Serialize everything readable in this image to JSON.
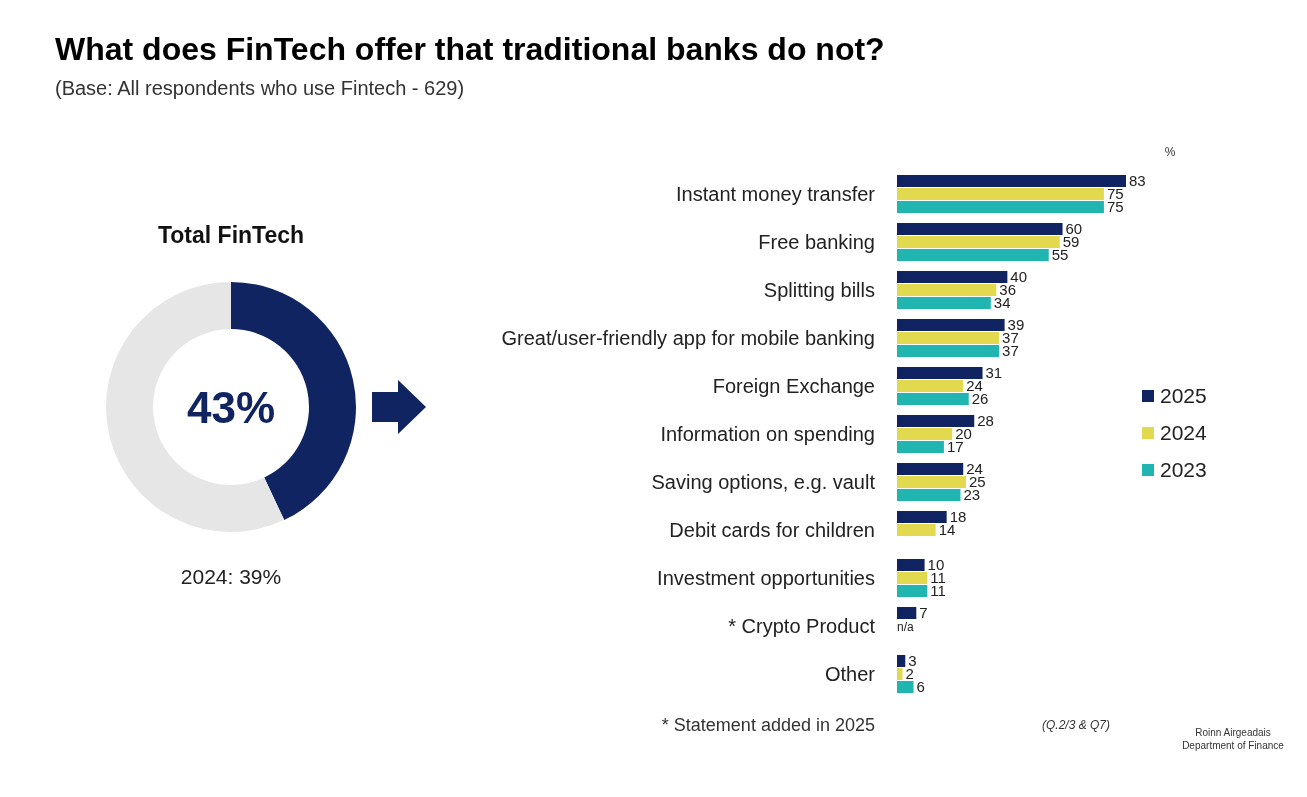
{
  "chart_data": [
    {
      "type": "donut",
      "title": "Total FinTech",
      "categories": [
        null,
        null
      ],
      "values": [
        43,
        57
      ],
      "colors": [
        "#0f2461",
        "#e6e6e6"
      ],
      "annotations": [
        "43%",
        "2024: 39%"
      ]
    },
    {
      "type": "bar",
      "orientation": "horizontal",
      "title": "What does FinTech offer that traditional banks do not?",
      "subtitle": "(Base: All respondents  who use Fintech  -  629)",
      "categories": [
        "Instant money transfer",
        "Free banking",
        "Splitting bills",
        "Great/user-friendly app for mobile banking",
        "Foreign Exchange",
        "Information on spending",
        "Saving options, e.g. vault",
        "Debit cards for children",
        "Investment opportunities",
        "* Crypto Product",
        "Other"
      ],
      "series": [
        {
          "name": "2025",
          "color": "#0f2461",
          "values": [
            83,
            60,
            40,
            39,
            31,
            28,
            24,
            18,
            10,
            7,
            3
          ],
          "value_labels": [
            "83",
            "60",
            "40",
            "39",
            "31",
            "28",
            "24",
            "18",
            "10",
            "7",
            "3"
          ]
        },
        {
          "name": "2024",
          "color": "#e3d94f",
          "values": [
            75,
            59,
            36,
            37,
            24,
            20,
            25,
            14,
            11,
            null,
            2
          ],
          "value_labels": [
            "75",
            "59",
            "36",
            "37",
            "24",
            "20",
            "25",
            "14",
            "11",
            "n/a",
            "2"
          ]
        },
        {
          "name": "2023",
          "color": "#20b5b0",
          "values": [
            75,
            55,
            34,
            37,
            26,
            17,
            23,
            null,
            11,
            null,
            6
          ],
          "value_labels": [
            "75",
            "55",
            "34",
            "37",
            "26",
            "17",
            "23",
            null,
            "11",
            null,
            "6"
          ]
        }
      ],
      "legend": "right",
      "annotations": [
        "%",
        "* Statement added in 2025",
        "(Q.2/3 & Q7)",
        "Roinn Airgeadais",
        "Department of Finance"
      ]
    }
  ]
}
